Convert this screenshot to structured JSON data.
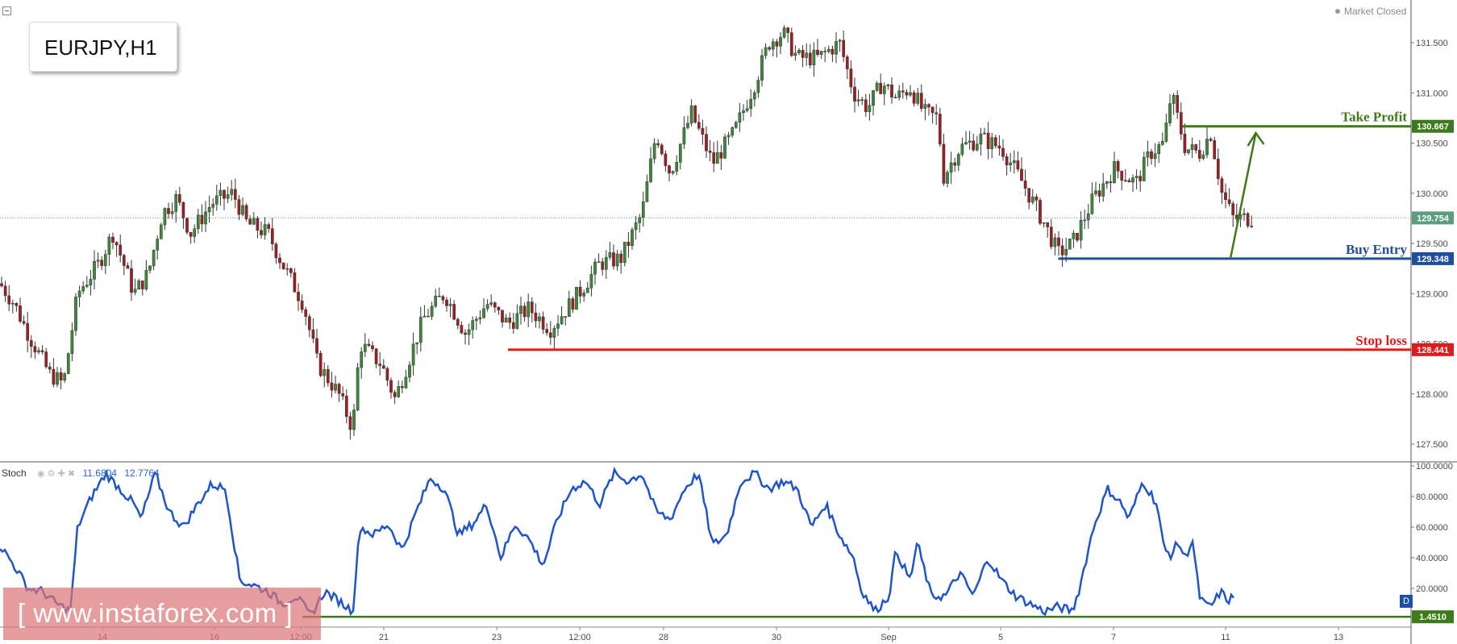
{
  "symbol": "EURJPY,H1",
  "market_status": "Market Closed",
  "watermark": "[ www.instaforex.com ]",
  "indicator": {
    "name": "Stoch",
    "value_k": "11.6804",
    "value_d": "12.7764",
    "badge": "D",
    "icons": [
      "eye-icon",
      "gear-icon",
      "plus-icon",
      "close-icon"
    ]
  },
  "colors": {
    "take_profit": "#3d7a1a",
    "buy_entry": "#1f4e9c",
    "stop_loss": "#e01b1b",
    "stoch_line": "#1e55c8",
    "candle": "#333333",
    "bull_fill": "#3a8a3a",
    "bear_fill": "#a01e1e"
  },
  "chart_data": [
    {
      "type": "candlestick",
      "title": "EURJPY,H1",
      "x_ticks": [
        "14",
        "16",
        "12:00",
        "21",
        "23",
        "12:00",
        "28",
        "30",
        "Sep",
        "5",
        "7",
        "11",
        "13"
      ],
      "y_ticks": [
        "131.500",
        "131.000",
        "130.500",
        "130.000",
        "129.500",
        "129.000",
        "128.500",
        "128.000",
        "127.500"
      ],
      "ylim": [
        127.3,
        131.85
      ],
      "last_price": "129.754",
      "price_path_anchors": [
        [
          0.0,
          129.1
        ],
        [
          0.01,
          128.9
        ],
        [
          0.02,
          128.6
        ],
        [
          0.035,
          128.2
        ],
        [
          0.045,
          128.1
        ],
        [
          0.055,
          129.0
        ],
        [
          0.07,
          129.3
        ],
        [
          0.08,
          129.6
        ],
        [
          0.095,
          129.0
        ],
        [
          0.105,
          129.2
        ],
        [
          0.115,
          129.8
        ],
        [
          0.125,
          129.95
        ],
        [
          0.135,
          129.6
        ],
        [
          0.15,
          129.9
        ],
        [
          0.165,
          130.0
        ],
        [
          0.175,
          129.7
        ],
        [
          0.19,
          129.6
        ],
        [
          0.2,
          129.3
        ],
        [
          0.215,
          128.9
        ],
        [
          0.225,
          128.3
        ],
        [
          0.24,
          128.0
        ],
        [
          0.25,
          127.65
        ],
        [
          0.255,
          128.5
        ],
        [
          0.27,
          128.3
        ],
        [
          0.28,
          127.95
        ],
        [
          0.3,
          128.75
        ],
        [
          0.315,
          129.0
        ],
        [
          0.33,
          128.6
        ],
        [
          0.345,
          128.9
        ],
        [
          0.36,
          128.7
        ],
        [
          0.375,
          128.85
        ],
        [
          0.39,
          128.65
        ],
        [
          0.41,
          129.0
        ],
        [
          0.425,
          129.3
        ],
        [
          0.44,
          129.35
        ],
        [
          0.455,
          129.8
        ],
        [
          0.465,
          130.6
        ],
        [
          0.475,
          130.2
        ],
        [
          0.49,
          130.8
        ],
        [
          0.505,
          130.3
        ],
        [
          0.52,
          130.6
        ],
        [
          0.535,
          131.1
        ],
        [
          0.545,
          131.5
        ],
        [
          0.555,
          131.6
        ],
        [
          0.565,
          131.35
        ],
        [
          0.58,
          131.35
        ],
        [
          0.595,
          131.5
        ],
        [
          0.605,
          131.0
        ],
        [
          0.615,
          130.85
        ],
        [
          0.625,
          131.1
        ],
        [
          0.635,
          130.95
        ],
        [
          0.645,
          131.05
        ],
        [
          0.655,
          130.8
        ],
        [
          0.665,
          130.75
        ],
        [
          0.668,
          130.15
        ],
        [
          0.68,
          130.45
        ],
        [
          0.695,
          130.55
        ],
        [
          0.71,
          130.45
        ],
        [
          0.725,
          130.1
        ],
        [
          0.74,
          129.7
        ],
        [
          0.75,
          129.4
        ],
        [
          0.76,
          129.5
        ],
        [
          0.775,
          129.95
        ],
        [
          0.79,
          130.25
        ],
        [
          0.805,
          130.1
        ],
        [
          0.815,
          130.4
        ],
        [
          0.825,
          130.5
        ],
        [
          0.83,
          131.0
        ],
        [
          0.84,
          130.45
        ],
        [
          0.85,
          130.4
        ],
        [
          0.858,
          130.6
        ],
        [
          0.866,
          130.0
        ],
        [
          0.874,
          129.75
        ],
        [
          0.882,
          129.75
        ],
        [
          0.887,
          129.75
        ]
      ],
      "levels": [
        {
          "name": "Take Profit",
          "value": 130.667,
          "label": "130.667",
          "x_start": 0.838
        },
        {
          "name": "Buy Entry",
          "value": 129.348,
          "label": "129.348",
          "x_start": 0.75
        },
        {
          "name": "Stop loss",
          "value": 128.441,
          "label": "128.441",
          "x_start": 0.36
        }
      ],
      "arrow": {
        "from": [
          0.872,
          129.35
        ],
        "to": [
          0.89,
          130.6
        ]
      }
    },
    {
      "type": "line",
      "title": "Stoch",
      "y_ticks": [
        "100.0000",
        "80.0000",
        "60.0000",
        "40.0000",
        "20.0000"
      ],
      "ylim": [
        0,
        100
      ],
      "threshold": {
        "value": 1.451,
        "label": "1.4510"
      },
      "k_anchors": [
        [
          0.0,
          48
        ],
        [
          0.01,
          35
        ],
        [
          0.02,
          20
        ],
        [
          0.03,
          18
        ],
        [
          0.04,
          10
        ],
        [
          0.05,
          5
        ],
        [
          0.055,
          60
        ],
        [
          0.065,
          80
        ],
        [
          0.075,
          95
        ],
        [
          0.085,
          85
        ],
        [
          0.095,
          75
        ],
        [
          0.1,
          65
        ],
        [
          0.11,
          95
        ],
        [
          0.12,
          70
        ],
        [
          0.13,
          60
        ],
        [
          0.14,
          75
        ],
        [
          0.15,
          88
        ],
        [
          0.16,
          85
        ],
        [
          0.17,
          25
        ],
        [
          0.18,
          22
        ],
        [
          0.19,
          18
        ],
        [
          0.2,
          10
        ],
        [
          0.21,
          15
        ],
        [
          0.22,
          2
        ],
        [
          0.23,
          18
        ],
        [
          0.24,
          12
        ],
        [
          0.25,
          5
        ],
        [
          0.255,
          60
        ],
        [
          0.265,
          55
        ],
        [
          0.275,
          62
        ],
        [
          0.285,
          45
        ],
        [
          0.295,
          70
        ],
        [
          0.305,
          92
        ],
        [
          0.315,
          85
        ],
        [
          0.325,
          55
        ],
        [
          0.335,
          62
        ],
        [
          0.345,
          75
        ],
        [
          0.355,
          40
        ],
        [
          0.365,
          62
        ],
        [
          0.375,
          52
        ],
        [
          0.385,
          35
        ],
        [
          0.395,
          65
        ],
        [
          0.405,
          85
        ],
        [
          0.415,
          90
        ],
        [
          0.425,
          75
        ],
        [
          0.435,
          95
        ],
        [
          0.445,
          90
        ],
        [
          0.455,
          95
        ],
        [
          0.465,
          70
        ],
        [
          0.475,
          65
        ],
        [
          0.485,
          85
        ],
        [
          0.495,
          95
        ],
        [
          0.505,
          48
        ],
        [
          0.515,
          55
        ],
        [
          0.525,
          90
        ],
        [
          0.535,
          95
        ],
        [
          0.545,
          85
        ],
        [
          0.555,
          90
        ],
        [
          0.565,
          85
        ],
        [
          0.575,
          60
        ],
        [
          0.585,
          75
        ],
        [
          0.595,
          55
        ],
        [
          0.605,
          40
        ],
        [
          0.61,
          20
        ],
        [
          0.62,
          5
        ],
        [
          0.63,
          15
        ],
        [
          0.635,
          45
        ],
        [
          0.645,
          25
        ],
        [
          0.65,
          50
        ],
        [
          0.66,
          15
        ],
        [
          0.67,
          15
        ],
        [
          0.68,
          30
        ],
        [
          0.69,
          15
        ],
        [
          0.7,
          40
        ],
        [
          0.71,
          25
        ],
        [
          0.72,
          15
        ],
        [
          0.73,
          10
        ],
        [
          0.74,
          5
        ],
        [
          0.75,
          8
        ],
        [
          0.76,
          5
        ],
        [
          0.765,
          20
        ],
        [
          0.775,
          60
        ],
        [
          0.785,
          85
        ],
        [
          0.795,
          75
        ],
        [
          0.8,
          65
        ],
        [
          0.81,
          90
        ],
        [
          0.82,
          75
        ],
        [
          0.825,
          45
        ],
        [
          0.83,
          42
        ],
        [
          0.835,
          50
        ],
        [
          0.84,
          40
        ],
        [
          0.845,
          52
        ],
        [
          0.85,
          15
        ],
        [
          0.855,
          8
        ],
        [
          0.86,
          10
        ],
        [
          0.865,
          18
        ],
        [
          0.87,
          12
        ],
        [
          0.875,
          15
        ]
      ]
    }
  ]
}
